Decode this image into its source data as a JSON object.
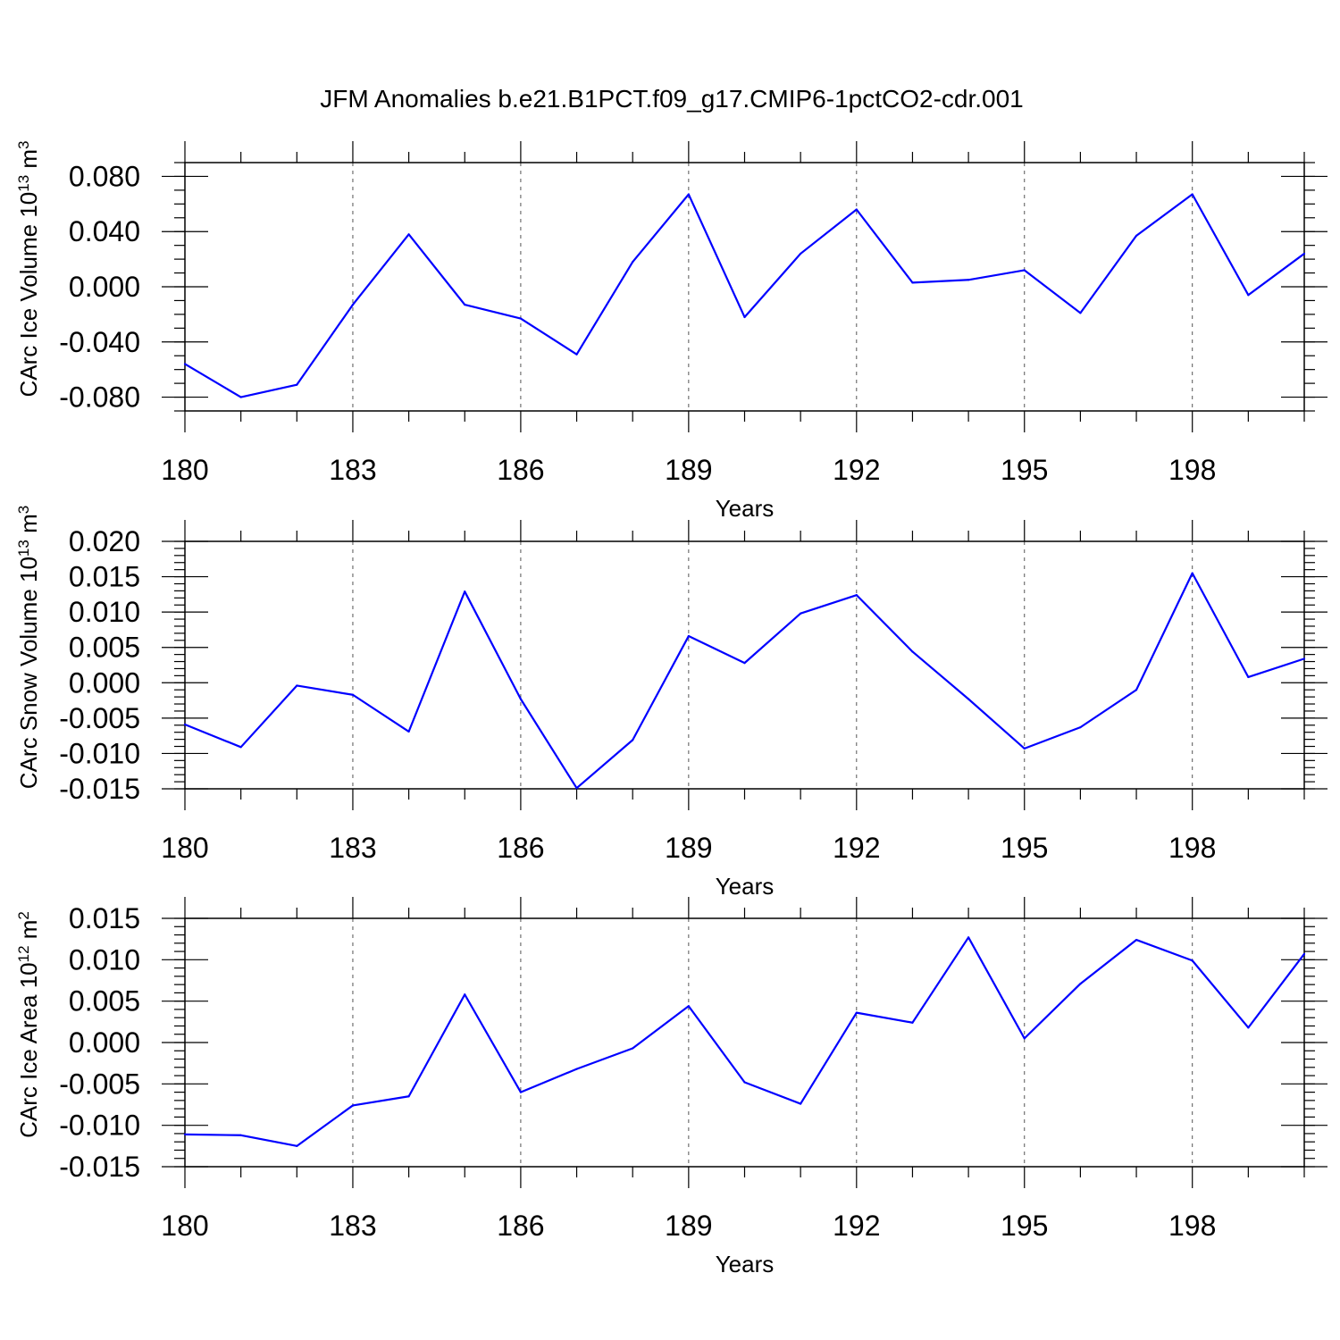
{
  "title": "JFM Anomalies b.e21.B1PCT.f09_g17.CMIP6-1pctCO2-cdr.001",
  "colors": {
    "line": "#0000ff",
    "frame": "#000000",
    "grid": "#555555"
  },
  "chart_data": [
    {
      "type": "line",
      "ylabel": "CArc Ice Volume 10",
      "ylabel_exp": "13",
      "ylabel_unit": " m",
      "ylabel_unit_exp": "3",
      "xlabel": "Years",
      "xlim": [
        180,
        200
      ],
      "ylim": [
        -0.09,
        0.09
      ],
      "x_ticks": [
        180,
        183,
        186,
        189,
        192,
        195,
        198
      ],
      "x_tick_labels": [
        "180",
        "183",
        "186",
        "189",
        "192",
        "195",
        "198"
      ],
      "y_ticks": [
        0.08,
        0.04,
        0.0,
        -0.04,
        -0.08
      ],
      "y_tick_labels": [
        "0.080",
        "0.040",
        "0.000",
        "-0.040",
        "-0.080"
      ],
      "y_minor_step": 0.01,
      "grid": "vertical dashed at major x ticks",
      "series": [
        {
          "x": [
            180,
            181,
            182,
            183,
            184,
            185,
            186,
            187,
            188,
            189,
            190,
            191,
            192,
            193,
            194,
            195,
            196,
            197,
            198,
            199,
            200
          ],
          "values": [
            -0.056,
            -0.08,
            -0.071,
            -0.013,
            0.038,
            -0.013,
            -0.023,
            -0.049,
            0.018,
            0.067,
            -0.022,
            0.024,
            0.056,
            0.003,
            0.005,
            0.012,
            -0.019,
            0.037,
            0.067,
            -0.006,
            0.024
          ]
        }
      ]
    },
    {
      "type": "line",
      "ylabel": "CArc Snow Volume 10",
      "ylabel_exp": "13",
      "ylabel_unit": " m",
      "ylabel_unit_exp": "3",
      "xlabel": "Years",
      "xlim": [
        180,
        200
      ],
      "ylim": [
        -0.015,
        0.02
      ],
      "x_ticks": [
        180,
        183,
        186,
        189,
        192,
        195,
        198
      ],
      "x_tick_labels": [
        "180",
        "183",
        "186",
        "189",
        "192",
        "195",
        "198"
      ],
      "y_ticks": [
        0.02,
        0.015,
        0.01,
        0.005,
        0.0,
        -0.005,
        -0.01,
        -0.015
      ],
      "y_tick_labels": [
        "0.020",
        "0.015",
        "0.010",
        "0.005",
        "0.000",
        "-0.005",
        "-0.010",
        "-0.015"
      ],
      "y_minor_step": 0.001,
      "grid": "vertical dashed at major x ticks",
      "series": [
        {
          "x": [
            180,
            181,
            182,
            183,
            184,
            185,
            186,
            187,
            188,
            189,
            190,
            191,
            192,
            193,
            194,
            195,
            196,
            197,
            198,
            199,
            200
          ],
          "values": [
            -0.0059,
            -0.0091,
            -0.0004,
            -0.0017,
            -0.0069,
            0.0129,
            -0.0023,
            -0.0149,
            -0.0081,
            0.0066,
            0.0028,
            0.0098,
            0.0124,
            0.0044,
            -0.0023,
            -0.0093,
            -0.0063,
            -0.001,
            0.0155,
            0.0008,
            0.0034
          ]
        }
      ]
    },
    {
      "type": "line",
      "ylabel": "CArc Ice Area 10",
      "ylabel_exp": "12",
      "ylabel_unit": " m",
      "ylabel_unit_exp": "2",
      "xlabel": "Years",
      "xlim": [
        180,
        200
      ],
      "ylim": [
        -0.015,
        0.015
      ],
      "x_ticks": [
        180,
        183,
        186,
        189,
        192,
        195,
        198
      ],
      "x_tick_labels": [
        "180",
        "183",
        "186",
        "189",
        "192",
        "195",
        "198"
      ],
      "y_ticks": [
        0.015,
        0.01,
        0.005,
        0.0,
        -0.005,
        -0.01,
        -0.015
      ],
      "y_tick_labels": [
        "0.015",
        "0.010",
        "0.005",
        "0.000",
        "-0.005",
        "-0.010",
        "-0.015"
      ],
      "y_minor_step": 0.001,
      "grid": "vertical dashed at major x ticks",
      "series": [
        {
          "x": [
            180,
            181,
            182,
            183,
            184,
            185,
            186,
            187,
            188,
            189,
            190,
            191,
            192,
            193,
            194,
            195,
            196,
            197,
            198,
            199,
            200
          ],
          "values": [
            -0.0111,
            -0.0112,
            -0.0125,
            -0.0076,
            -0.0065,
            0.0058,
            -0.006,
            -0.0032,
            -0.0007,
            0.0044,
            -0.0048,
            -0.0074,
            0.0036,
            0.0024,
            0.0127,
            0.0005,
            0.0071,
            0.0124,
            0.0099,
            0.0018,
            0.0107
          ]
        }
      ]
    }
  ]
}
